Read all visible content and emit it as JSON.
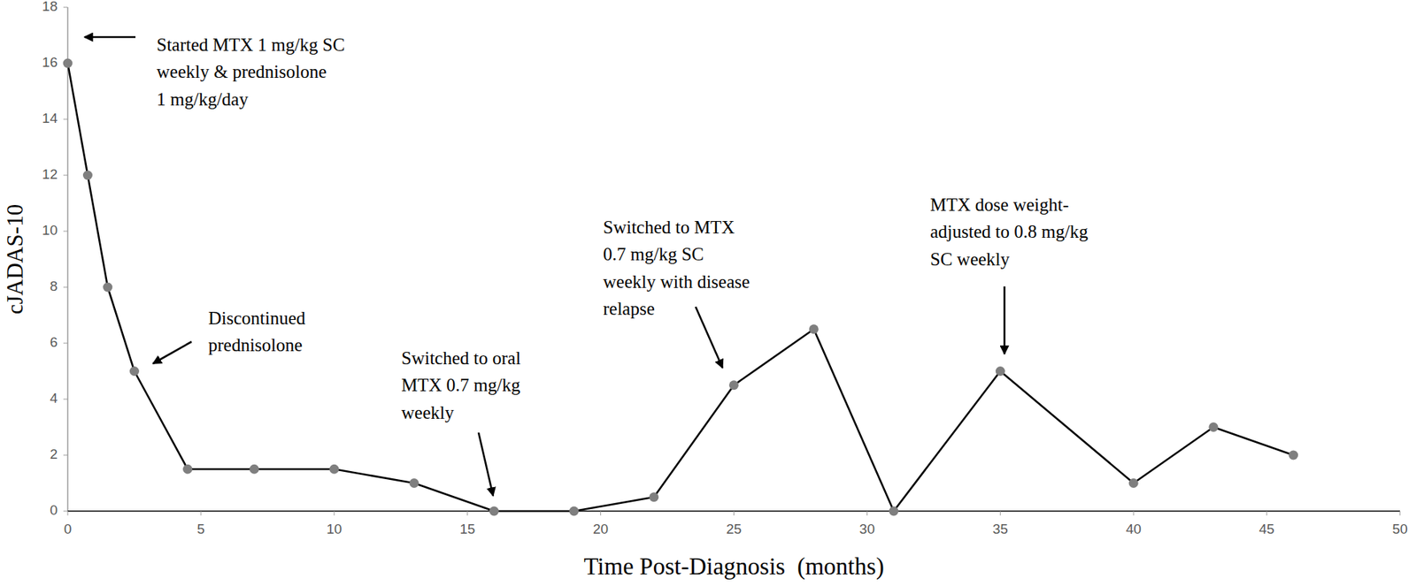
{
  "chart_data": {
    "type": "line",
    "x_label": "Time Post-Diagnosis  (months)",
    "y_label": "cJADAS-10",
    "x": [
      0,
      0.75,
      1.5,
      2.5,
      4.5,
      7,
      10,
      13,
      16,
      19,
      22,
      25,
      28,
      31,
      35,
      40,
      43,
      46
    ],
    "values": [
      16,
      12,
      8,
      5,
      1.5,
      1.5,
      1.5,
      1,
      0,
      0,
      0.5,
      4.5,
      6.5,
      0,
      5,
      1,
      3,
      2
    ],
    "color": "#000000",
    "marker": "circle",
    "xlim": [
      0,
      50
    ],
    "xticks": [
      0,
      5,
      10,
      15,
      20,
      25,
      30,
      35,
      40,
      45,
      50
    ],
    "ylim": [
      0,
      18
    ],
    "yticks": [
      0,
      2,
      4,
      6,
      8,
      10,
      12,
      14,
      16,
      18
    ],
    "grid": false,
    "annotations": [
      {
        "text": [
          "Started MTX 1 mg/kg SC",
          "weekly & prednisolone",
          "1 mg/kg/day"
        ]
      },
      {
        "text": [
          "Discontinued",
          "prednisolone"
        ]
      },
      {
        "text": [
          "Switched to oral",
          "MTX 0.7 mg/kg",
          "weekly"
        ]
      },
      {
        "text": [
          "Switched to MTX",
          "0.7 mg/kg SC",
          "weekly with disease",
          "relapse"
        ]
      },
      {
        "text": [
          "MTX dose weight-",
          "adjusted to 0.8 mg/kg",
          "SC weekly"
        ]
      }
    ]
  }
}
